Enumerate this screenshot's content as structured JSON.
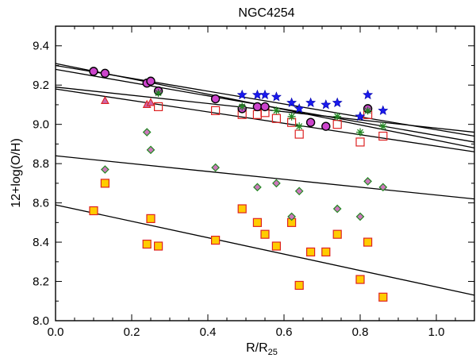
{
  "chart_data": {
    "type": "scatter",
    "title": "NGC4254",
    "xlabel": "R/R",
    "xlabel_sub": "25",
    "ylabel": "12+log(O/H)",
    "xlim": [
      0.0,
      1.1
    ],
    "ylim": [
      8.0,
      9.5
    ],
    "xticks": [
      0.0,
      0.2,
      0.4,
      0.6,
      0.8,
      1.0
    ],
    "xtick_labels": [
      "0.0",
      "0.2",
      "0.4",
      "0.6",
      "0.8",
      "1.0"
    ],
    "yticks": [
      8.0,
      8.2,
      8.4,
      8.6,
      8.8,
      9.0,
      9.2,
      9.4
    ],
    "ytick_labels": [
      "8.0",
      "8.2",
      "8.4",
      "8.6",
      "8.8",
      "9.0",
      "9.2",
      "9.4"
    ],
    "grid": false,
    "series": [
      {
        "name": "magenta-circles",
        "marker": "circle",
        "fill": "#cc44cc",
        "stroke": "#000000",
        "points": [
          [
            0.1,
            9.27
          ],
          [
            0.13,
            9.26
          ],
          [
            0.24,
            9.21
          ],
          [
            0.25,
            9.22
          ],
          [
            0.27,
            9.17
          ],
          [
            0.42,
            9.13
          ],
          [
            0.49,
            9.08
          ],
          [
            0.53,
            9.09
          ],
          [
            0.55,
            9.09
          ],
          [
            0.67,
            9.01
          ],
          [
            0.71,
            8.99
          ],
          [
            0.82,
            9.08
          ]
        ]
      },
      {
        "name": "blue-stars",
        "marker": "star",
        "fill": "#1a1aee",
        "stroke": "#0000aa",
        "points": [
          [
            0.49,
            9.15
          ],
          [
            0.53,
            9.15
          ],
          [
            0.55,
            9.15
          ],
          [
            0.58,
            9.14
          ],
          [
            0.62,
            9.11
          ],
          [
            0.64,
            9.08
          ],
          [
            0.67,
            9.11
          ],
          [
            0.71,
            9.1
          ],
          [
            0.74,
            9.11
          ],
          [
            0.8,
            9.04
          ],
          [
            0.82,
            9.15
          ],
          [
            0.86,
            9.07
          ]
        ]
      },
      {
        "name": "green-asterisks",
        "marker": "asterisk",
        "fill": "none",
        "stroke": "#228822",
        "points": [
          [
            0.27,
            9.16
          ],
          [
            0.49,
            9.09
          ],
          [
            0.58,
            9.07
          ],
          [
            0.62,
            9.04
          ],
          [
            0.64,
            8.99
          ],
          [
            0.74,
            9.04
          ],
          [
            0.8,
            8.96
          ],
          [
            0.82,
            9.07
          ],
          [
            0.86,
            8.99
          ]
        ]
      },
      {
        "name": "red-open-squares",
        "marker": "square-open",
        "fill": "none",
        "stroke": "#dd2222",
        "points": [
          [
            0.27,
            9.09
          ],
          [
            0.42,
            9.07
          ],
          [
            0.49,
            9.05
          ],
          [
            0.53,
            9.05
          ],
          [
            0.55,
            9.06
          ],
          [
            0.58,
            9.03
          ],
          [
            0.62,
            9.01
          ],
          [
            0.64,
            8.95
          ],
          [
            0.74,
            9.0
          ],
          [
            0.8,
            8.91
          ],
          [
            0.82,
            9.05
          ],
          [
            0.86,
            8.94
          ]
        ]
      },
      {
        "name": "triangles",
        "marker": "triangle",
        "fill": "#cc66aa",
        "stroke": "#dd2222",
        "points": [
          [
            0.13,
            9.12
          ],
          [
            0.24,
            9.1
          ],
          [
            0.25,
            9.11
          ]
        ]
      },
      {
        "name": "green-diamonds",
        "marker": "diamond",
        "fill": "#cc77bb",
        "stroke": "#228822",
        "points": [
          [
            0.13,
            8.77
          ],
          [
            0.24,
            8.96
          ],
          [
            0.25,
            8.87
          ],
          [
            0.42,
            8.78
          ],
          [
            0.53,
            8.68
          ],
          [
            0.58,
            8.7
          ],
          [
            0.62,
            8.53
          ],
          [
            0.64,
            8.66
          ],
          [
            0.74,
            8.57
          ],
          [
            0.8,
            8.53
          ],
          [
            0.82,
            8.71
          ],
          [
            0.86,
            8.68
          ]
        ]
      },
      {
        "name": "orange-squares",
        "marker": "square",
        "fill": "#ffcc00",
        "stroke": "#dd2222",
        "points": [
          [
            0.1,
            8.56
          ],
          [
            0.13,
            8.7
          ],
          [
            0.24,
            8.39
          ],
          [
            0.25,
            8.52
          ],
          [
            0.27,
            8.38
          ],
          [
            0.42,
            8.41
          ],
          [
            0.49,
            8.57
          ],
          [
            0.53,
            8.5
          ],
          [
            0.55,
            8.44
          ],
          [
            0.58,
            8.38
          ],
          [
            0.62,
            8.5
          ],
          [
            0.64,
            8.18
          ],
          [
            0.67,
            8.35
          ],
          [
            0.71,
            8.35
          ],
          [
            0.74,
            8.44
          ],
          [
            0.8,
            8.21
          ],
          [
            0.82,
            8.4
          ],
          [
            0.86,
            8.12
          ]
        ]
      }
    ],
    "fit_lines": [
      {
        "name": "fit-line-1",
        "x": [
          0.0,
          1.1
        ],
        "y": [
          9.31,
          8.88
        ]
      },
      {
        "name": "fit-line-2",
        "x": [
          0.0,
          1.1
        ],
        "y": [
          9.3,
          8.94
        ]
      },
      {
        "name": "fit-line-3",
        "x": [
          0.0,
          1.1
        ],
        "y": [
          9.28,
          8.91
        ]
      },
      {
        "name": "fit-line-4",
        "x": [
          0.0,
          1.1
        ],
        "y": [
          9.19,
          8.96
        ]
      },
      {
        "name": "fit-line-5",
        "x": [
          0.0,
          1.1
        ],
        "y": [
          9.18,
          8.86
        ]
      },
      {
        "name": "fit-line-6",
        "x": [
          0.0,
          1.1
        ],
        "y": [
          8.84,
          8.62
        ]
      },
      {
        "name": "fit-line-7",
        "x": [
          0.0,
          1.1
        ],
        "y": [
          8.59,
          8.13
        ]
      }
    ]
  }
}
